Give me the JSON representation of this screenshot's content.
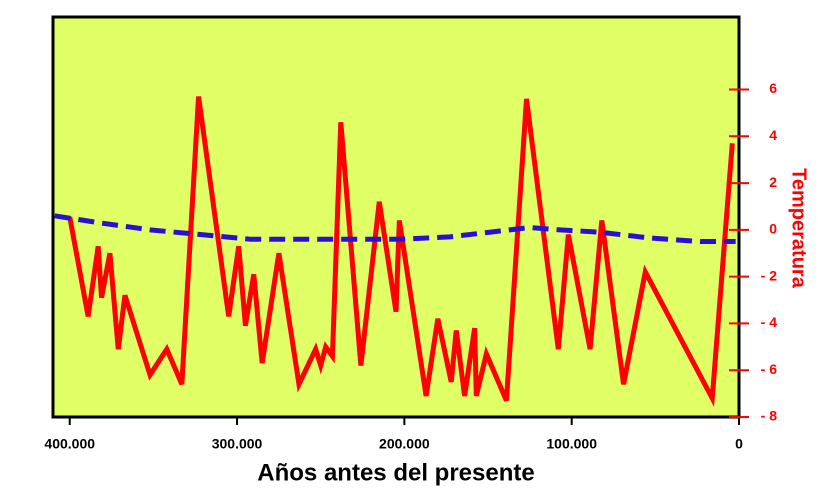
{
  "chart_data": {
    "type": "line",
    "xlabel": "Años antes del presente",
    "ylabel": "Temperatura",
    "background": "#e0ff66",
    "xlim": [
      410000,
      0
    ],
    "xticks": [
      {
        "value": 400000,
        "label": "400.000"
      },
      {
        "value": 300000,
        "label": "300.000"
      },
      {
        "value": 200000,
        "label": "200.000"
      },
      {
        "value": 100000,
        "label": "100.000"
      },
      0
    ],
    "ylim": [
      -8,
      9.1
    ],
    "yticks": [
      {
        "value": -8,
        "label": "- 8"
      },
      {
        "value": -6,
        "label": "- 6"
      },
      {
        "value": -4,
        "label": "- 4"
      },
      {
        "value": -2,
        "label": "- 2"
      },
      0,
      2,
      4,
      6
    ],
    "yaxis_color": "#ff0000",
    "series": [
      {
        "color": "#ff0000",
        "dashed": false,
        "x": [
          400000,
          389000,
          383000,
          381000,
          376000,
          371000,
          367000,
          352000,
          342000,
          333000,
          323000,
          305000,
          299000,
          295000,
          290000,
          285000,
          275000,
          263000,
          253000,
          250000,
          247000,
          243000,
          238000,
          226000,
          215000,
          205000,
          203000,
          187000,
          180000,
          172000,
          169000,
          164000,
          158000,
          157000,
          151000,
          139000,
          127000,
          108000,
          102000,
          89000,
          82000,
          69000,
          56000,
          16000,
          4000
        ],
        "values": [
          0.55,
          -3.7,
          -0.7,
          -2.9,
          -1.0,
          -5.1,
          -2.8,
          -6.2,
          -5.1,
          -6.6,
          5.7,
          -3.7,
          -0.7,
          -4.1,
          -1.9,
          -5.7,
          -1.0,
          -6.6,
          -5.1,
          -5.8,
          -5.0,
          -5.4,
          4.6,
          -5.8,
          1.2,
          -3.5,
          0.4,
          -7.1,
          -3.8,
          -6.5,
          -4.3,
          -7.1,
          -4.2,
          -7.1,
          -5.3,
          -7.3,
          5.6,
          -5.1,
          -0.2,
          -5.1,
          0.4,
          -6.6,
          -1.8,
          -7.2,
          3.7
        ]
      },
      {
        "color": "#2a10d0",
        "dashed": true,
        "x": [
          409000,
          382000,
          352000,
          322000,
          292000,
          262000,
          232000,
          203000,
          173000,
          149000,
          125000,
          107000,
          83000,
          53000,
          23000,
          2000
        ],
        "values": [
          0.6,
          0.3,
          0.0,
          -0.2,
          -0.4,
          -0.4,
          -0.4,
          -0.4,
          -0.3,
          -0.1,
          0.1,
          0.0,
          -0.1,
          -0.35,
          -0.5,
          -0.5
        ]
      }
    ]
  }
}
